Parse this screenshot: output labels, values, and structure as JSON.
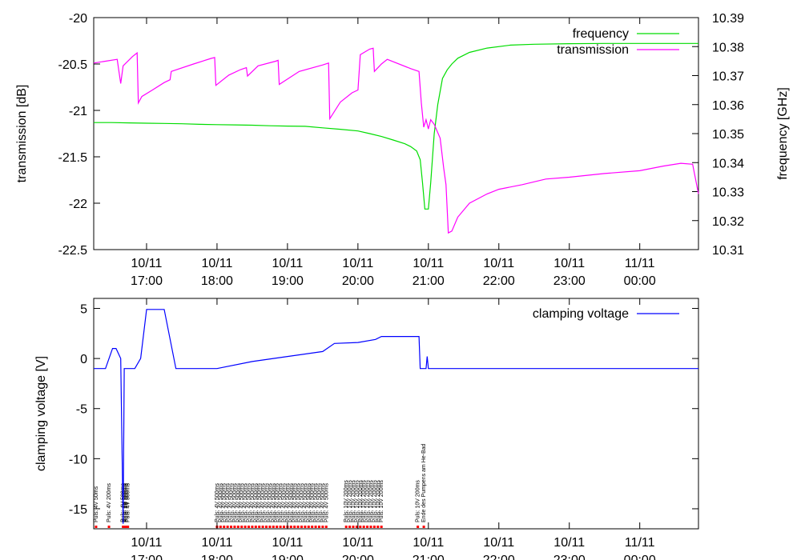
{
  "chart_data": [
    {
      "type": "line",
      "ylabel": "transmission [dB]",
      "y2label": "frequency [GHz]",
      "ylim": [
        -22.5,
        -20
      ],
      "y2lim": [
        10.31,
        10.39
      ],
      "yticks": [
        "-20",
        "-20.5",
        "-21",
        "-21.5",
        "-22",
        "-22.5"
      ],
      "y2ticks": [
        "10.39",
        "10.38",
        "10.37",
        "10.36",
        "10.35",
        "10.34",
        "10.33",
        "10.32",
        "10.31"
      ],
      "xticks": [
        {
          "date": "10/11",
          "time": "17:00"
        },
        {
          "date": "10/11",
          "time": "18:00"
        },
        {
          "date": "10/11",
          "time": "19:00"
        },
        {
          "date": "10/11",
          "time": "20:00"
        },
        {
          "date": "10/11",
          "time": "21:00"
        },
        {
          "date": "10/11",
          "time": "22:00"
        },
        {
          "date": "10/11",
          "time": "23:00"
        },
        {
          "date": "11/11",
          "time": "00:00"
        }
      ],
      "xlim": [
        "16:15",
        "00:50"
      ],
      "legend_position": "top-right",
      "series": [
        {
          "name": "frequency",
          "axis": "right",
          "color": "#00dd00",
          "points": [
            [
              "16:15",
              10.3538
            ],
            [
              "16:30",
              10.3538
            ],
            [
              "16:45",
              10.3537
            ],
            [
              "17:00",
              10.3536
            ],
            [
              "17:15",
              10.3535
            ],
            [
              "17:30",
              10.3534
            ],
            [
              "17:45",
              10.3532
            ],
            [
              "18:00",
              10.3531
            ],
            [
              "18:15",
              10.353
            ],
            [
              "18:30",
              10.3529
            ],
            [
              "18:45",
              10.3527
            ],
            [
              "19:00",
              10.3526
            ],
            [
              "19:15",
              10.3525
            ],
            [
              "19:30",
              10.352
            ],
            [
              "19:45",
              10.3515
            ],
            [
              "20:00",
              10.3509
            ],
            [
              "20:10",
              10.35
            ],
            [
              "20:20",
              10.349
            ],
            [
              "20:30",
              10.3478
            ],
            [
              "20:40",
              10.3465
            ],
            [
              "20:45",
              10.3455
            ],
            [
              "20:50",
              10.344
            ],
            [
              "20:53",
              10.341
            ],
            [
              "20:55",
              10.333
            ],
            [
              "20:57",
              10.324
            ],
            [
              "21:00",
              10.324
            ],
            [
              "21:02",
              10.333
            ],
            [
              "21:05",
              10.35
            ],
            [
              "21:08",
              10.36
            ],
            [
              "21:12",
              10.369
            ],
            [
              "21:16",
              10.372
            ],
            [
              "21:20",
              10.374
            ],
            [
              "21:25",
              10.376
            ],
            [
              "21:35",
              10.378
            ],
            [
              "21:50",
              10.3795
            ],
            [
              "22:10",
              10.3805
            ],
            [
              "22:30",
              10.3808
            ],
            [
              "23:00",
              10.381
            ],
            [
              "23:30",
              10.3811
            ],
            [
              "00:00",
              10.3811
            ],
            [
              "00:50",
              10.3811
            ]
          ]
        },
        {
          "name": "transmission",
          "axis": "left",
          "color": "#ff00ff",
          "points": [
            [
              "16:15",
              -20.49
            ],
            [
              "16:25",
              -20.47
            ],
            [
              "16:35",
              -20.45
            ],
            [
              "16:38",
              -20.71
            ],
            [
              "16:40",
              -20.52
            ],
            [
              "16:48",
              -20.42
            ],
            [
              "16:52",
              -20.38
            ],
            [
              "16:53",
              -20.92
            ],
            [
              "16:56",
              -20.85
            ],
            [
              "17:05",
              -20.78
            ],
            [
              "17:15",
              -20.7
            ],
            [
              "17:20",
              -20.67
            ],
            [
              "17:21",
              -20.58
            ],
            [
              "17:40",
              -20.5
            ],
            [
              "17:55",
              -20.44
            ],
            [
              "17:58",
              -20.43
            ],
            [
              "17:59",
              -20.73
            ],
            [
              "18:10",
              -20.62
            ],
            [
              "18:20",
              -20.56
            ],
            [
              "18:25",
              -20.54
            ],
            [
              "18:26",
              -20.63
            ],
            [
              "18:35",
              -20.52
            ],
            [
              "18:50",
              -20.47
            ],
            [
              "18:52",
              -20.46
            ],
            [
              "18:53",
              -20.72
            ],
            [
              "19:10",
              -20.58
            ],
            [
              "19:30",
              -20.51
            ],
            [
              "19:35",
              -20.49
            ],
            [
              "19:36",
              -21.09
            ],
            [
              "19:45",
              -20.91
            ],
            [
              "19:55",
              -20.81
            ],
            [
              "20:00",
              -20.78
            ],
            [
              "20:02",
              -20.4
            ],
            [
              "20:10",
              -20.34
            ],
            [
              "20:13",
              -20.33
            ],
            [
              "20:14",
              -20.58
            ],
            [
              "20:20",
              -20.5
            ],
            [
              "20:25",
              -20.45
            ],
            [
              "20:45",
              -20.55
            ],
            [
              "20:52",
              -20.58
            ],
            [
              "20:54",
              -20.92
            ],
            [
              "20:56",
              -21.18
            ],
            [
              "20:58",
              -21.1
            ],
            [
              "21:00",
              -21.2
            ],
            [
              "21:02",
              -21.1
            ],
            [
              "21:05",
              -21.15
            ],
            [
              "21:10",
              -21.3
            ],
            [
              "21:13",
              -21.62
            ],
            [
              "21:15",
              -21.8
            ],
            [
              "21:17",
              -22.32
            ],
            [
              "21:20",
              -22.3
            ],
            [
              "21:25",
              -22.15
            ],
            [
              "21:35",
              -22.0
            ],
            [
              "21:50",
              -21.9
            ],
            [
              "22:00",
              -21.85
            ],
            [
              "22:20",
              -21.8
            ],
            [
              "22:40",
              -21.74
            ],
            [
              "23:00",
              -21.72
            ],
            [
              "23:30",
              -21.68
            ],
            [
              "00:00",
              -21.65
            ],
            [
              "00:20",
              -21.6
            ],
            [
              "00:35",
              -21.57
            ],
            [
              "00:45",
              -21.58
            ],
            [
              "00:50",
              -21.9
            ]
          ]
        }
      ]
    },
    {
      "type": "line",
      "ylabel": "clamping voltage [V]",
      "ylim": [
        -17,
        6
      ],
      "yticks": [
        "5",
        "0",
        "-5",
        "-10",
        "-15"
      ],
      "xticks": [
        {
          "date": "10/11",
          "time": "17:00"
        },
        {
          "date": "10/11",
          "time": "18:00"
        },
        {
          "date": "10/11",
          "time": "19:00"
        },
        {
          "date": "10/11",
          "time": "20:00"
        },
        {
          "date": "10/11",
          "time": "21:00"
        },
        {
          "date": "10/11",
          "time": "22:00"
        },
        {
          "date": "10/11",
          "time": "23:00"
        },
        {
          "date": "11/11",
          "time": "00:00"
        }
      ],
      "xlim": [
        "16:15",
        "00:50"
      ],
      "legend_position": "top-right",
      "series": [
        {
          "name": "clamping voltage",
          "color": "#0000ff",
          "points": [
            [
              "16:15",
              -1
            ],
            [
              "16:25",
              -1
            ],
            [
              "16:31",
              1
            ],
            [
              "16:34",
              1
            ],
            [
              "16:38",
              0
            ],
            [
              "16:40",
              -16.5
            ],
            [
              "16:41",
              -1
            ],
            [
              "16:43",
              -1
            ],
            [
              "16:50",
              -1
            ],
            [
              "16:55",
              0
            ],
            [
              "17:00",
              4.9
            ],
            [
              "17:15",
              4.9
            ],
            [
              "17:25",
              -1
            ],
            [
              "17:55",
              -1
            ],
            [
              "18:00",
              -1
            ],
            [
              "18:30",
              -0.3
            ],
            [
              "19:00",
              0.2
            ],
            [
              "19:30",
              0.7
            ],
            [
              "19:40",
              1.5
            ],
            [
              "20:00",
              1.6
            ],
            [
              "20:15",
              1.9
            ],
            [
              "20:20",
              2.2
            ],
            [
              "20:45",
              2.2
            ],
            [
              "20:52",
              2.2
            ],
            [
              "20:53",
              -1
            ],
            [
              "20:58",
              -1
            ],
            [
              "20:59",
              0.2
            ],
            [
              "21:00",
              -1
            ],
            [
              "22:00",
              -1
            ],
            [
              "23:00",
              -1
            ],
            [
              "00:00",
              -1
            ],
            [
              "00:50",
              -1
            ]
          ]
        }
      ],
      "annotations": [
        "Puls: 4V 50ms",
        "Puls: 4V 200ms",
        "Puls: 4V 500ms",
        "Puls: 10V 200ms",
        "Ende des Pumpens am He-Bad"
      ]
    }
  ]
}
